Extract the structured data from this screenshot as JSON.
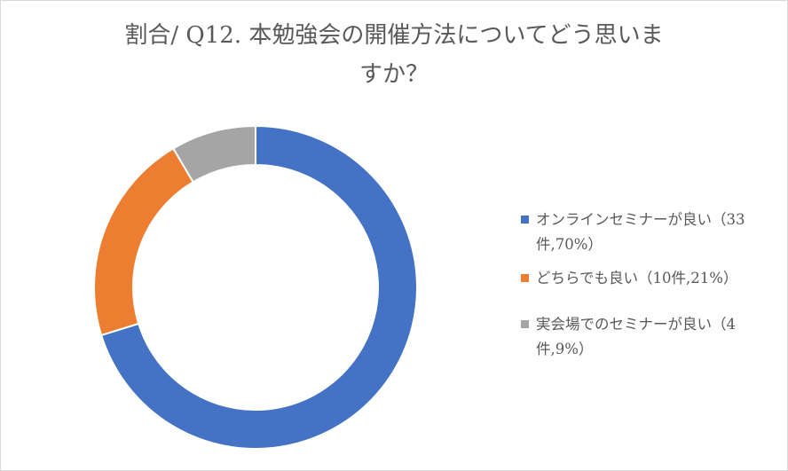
{
  "chart_data": {
    "type": "pie",
    "title_line1": "割合/ Q12. 本勉強会の開催方法についてどう思いま",
    "title_line2": "すか？",
    "categories": [
      "オンラインセミナーが良い（33件,70%）",
      "どちらでも良い（10件,21%）",
      "実会場でのセミナーが良い（4件,9%）"
    ],
    "values": [
      33,
      10,
      4
    ],
    "colors": [
      "#4472c4",
      "#ed7d31",
      "#a5a5a5"
    ],
    "donut": true,
    "legend_position": "right"
  },
  "legend": [
    {
      "label": "オンラインセミナーが良い（33\n件,70%）",
      "color": "#4472c4"
    },
    {
      "label": "どちらでも良い（10件,21%）",
      "color": "#ed7d31"
    },
    {
      "label": "実会場でのセミナーが良い（4\n件,9%）",
      "color": "#a5a5a5"
    }
  ]
}
